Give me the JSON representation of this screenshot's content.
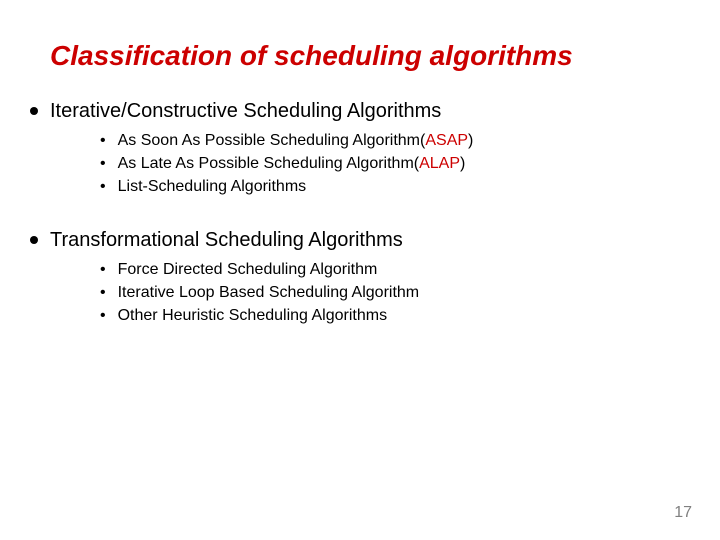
{
  "colors": {
    "title": "#cc0000",
    "heading": "#000000",
    "body": "#000000",
    "accent": "#cc0000",
    "pagenum": "#808080",
    "bullet": "#000000"
  },
  "title": "Classification of scheduling algorithms",
  "sections": [
    {
      "heading": "Iterative/Constructive Scheduling Algorithms",
      "items": [
        {
          "pre": "As Soon As Possible Scheduling Algorithm(",
          "accent": "ASAP",
          "post": ")"
        },
        {
          "pre": "As Late As Possible Scheduling Algorithm(",
          "accent": "ALAP",
          "post": ")"
        },
        {
          "pre": "List-Scheduling Algorithms",
          "accent": "",
          "post": ""
        }
      ]
    },
    {
      "heading": "Transformational Scheduling Algorithms",
      "items": [
        {
          "pre": "Force Directed Scheduling Algorithm",
          "accent": "",
          "post": ""
        },
        {
          "pre": "Iterative Loop Based Scheduling Algorithm",
          "accent": "",
          "post": ""
        },
        {
          "pre": "Other Heuristic Scheduling Algorithms",
          "accent": "",
          "post": ""
        }
      ]
    }
  ],
  "page_number": "17"
}
